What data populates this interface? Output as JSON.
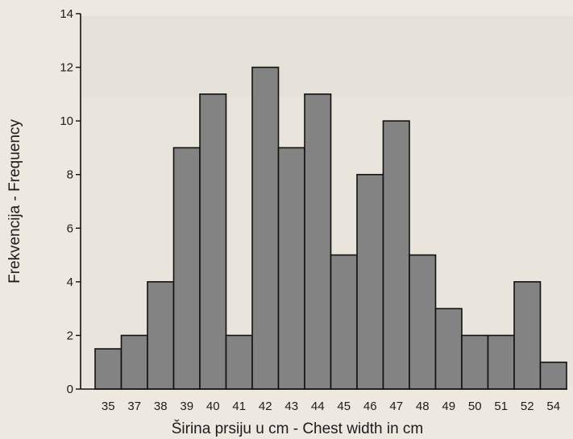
{
  "chart_data": {
    "type": "bar",
    "categories": [
      "35",
      "37",
      "38",
      "39",
      "40",
      "41",
      "42",
      "43",
      "44",
      "45",
      "46",
      "47",
      "48",
      "49",
      "50",
      "51",
      "52",
      "54"
    ],
    "values": [
      1.5,
      2,
      4,
      9,
      11,
      2,
      12,
      9,
      11,
      5,
      8,
      10,
      5,
      3,
      2,
      2,
      4,
      1
    ],
    "yticks": [
      "0",
      "2",
      "4",
      "6",
      "8",
      "10",
      "12",
      "14"
    ],
    "ylim": [
      0,
      14
    ],
    "xlabel": "Širina prsiju u cm - Chest width in cm",
    "ylabel": "Frekvencija - Frequency",
    "title": "",
    "grid": false,
    "bar_color": "#838383"
  }
}
